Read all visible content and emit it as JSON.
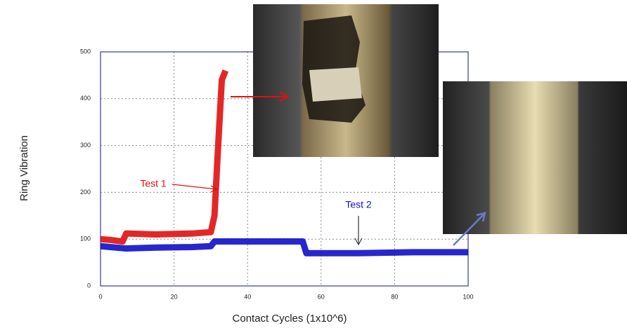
{
  "chart_data": {
    "type": "line",
    "x_label": "Contact Cycles (1x10^6)",
    "y_label": "Ring Vibration",
    "xlim": [
      0,
      100
    ],
    "xticks": [
      0,
      20,
      40,
      60,
      80,
      100
    ],
    "ylim": [
      0,
      500
    ],
    "yticks": [
      0,
      100,
      200,
      300,
      400,
      500
    ],
    "grid": true,
    "series": [
      {
        "name": "Test 1",
        "color": "#e01010",
        "x": [
          0,
          3,
          6,
          7,
          15,
          25,
          30,
          31,
          32,
          33,
          34
        ],
        "values": [
          100,
          98,
          95,
          112,
          110,
          112,
          115,
          150,
          300,
          440,
          460
        ]
      },
      {
        "name": "Test 2",
        "color": "#1010c8",
        "x": [
          0,
          7,
          15,
          25,
          30,
          31,
          45,
          55,
          56,
          70,
          85,
          100
        ],
        "values": [
          85,
          80,
          82,
          83,
          85,
          95,
          95,
          95,
          70,
          70,
          72,
          72
        ]
      }
    ]
  }
}
